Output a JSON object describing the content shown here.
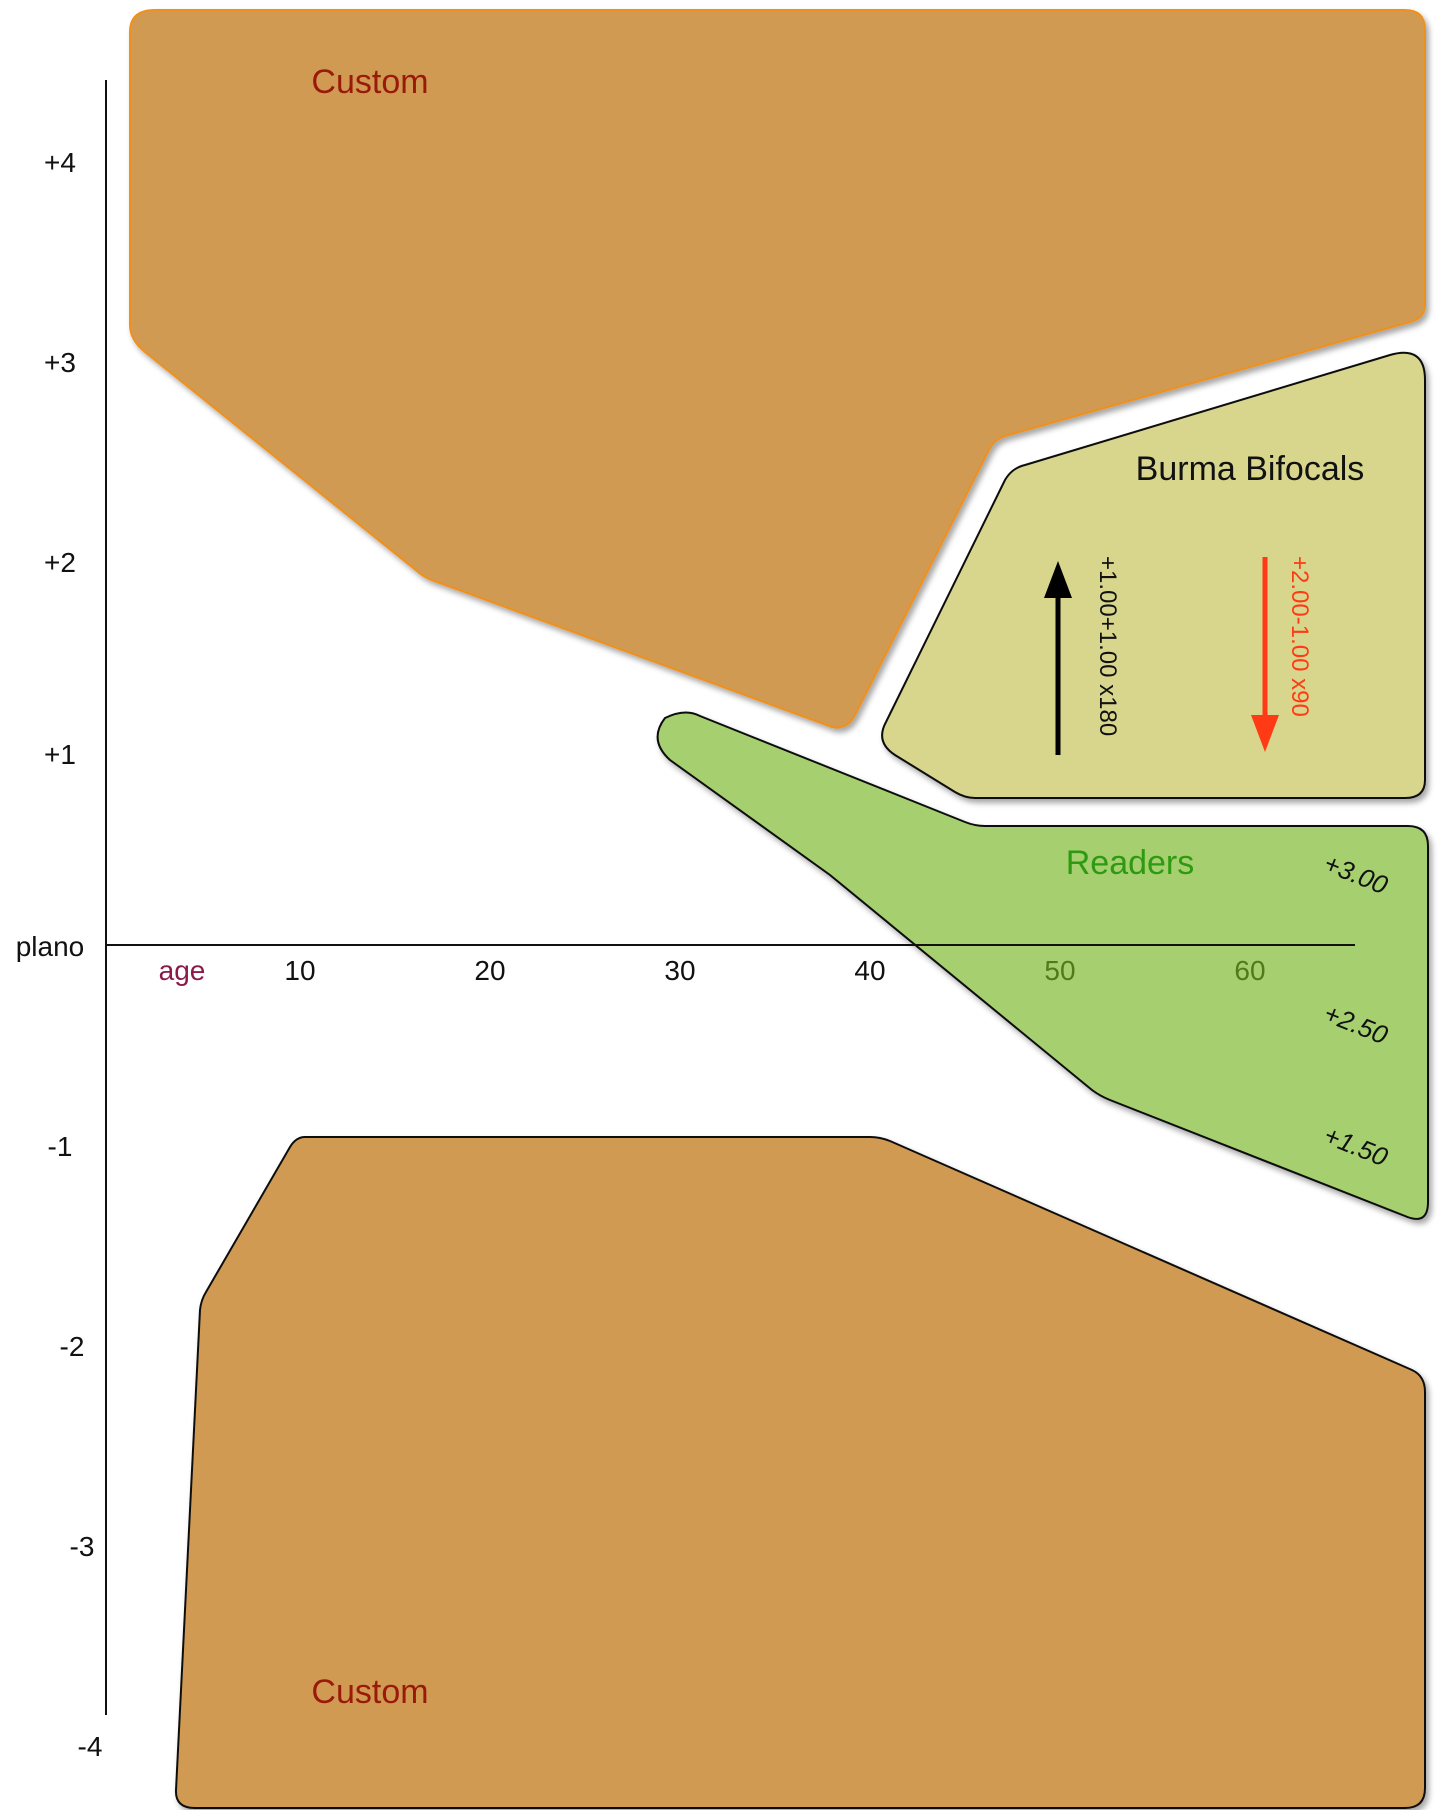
{
  "axes": {
    "x_label": "age",
    "x_ticks": [
      "10",
      "20",
      "30",
      "40",
      "50",
      "60"
    ],
    "y_zero_label": "plano",
    "y_ticks_positive": [
      "+4",
      "+3",
      "+2",
      "+1"
    ],
    "y_ticks_negative": [
      "-1",
      "-2",
      "-3",
      "-4"
    ]
  },
  "regions": {
    "custom_top": {
      "label": "Custom"
    },
    "burma_bifocals": {
      "label": "Burma Bifocals",
      "rx_up": "+1.00+1.00 x180",
      "rx_down": "+2.00-1.00 x90"
    },
    "readers": {
      "label": "Readers",
      "powers": [
        "+3.00",
        "+2.50",
        "+1.50"
      ]
    },
    "custom_bottom": {
      "label": "Custom"
    }
  },
  "colors": {
    "custom_fill": "#d19a52",
    "bifocal_fill": "#d8d68c",
    "readers_fill": "#a6d070",
    "custom_label": "#9a1a0a",
    "readers_label": "#2e9a12",
    "age_label": "#8a1a4a",
    "red_arrow": "#ff3a14"
  }
}
